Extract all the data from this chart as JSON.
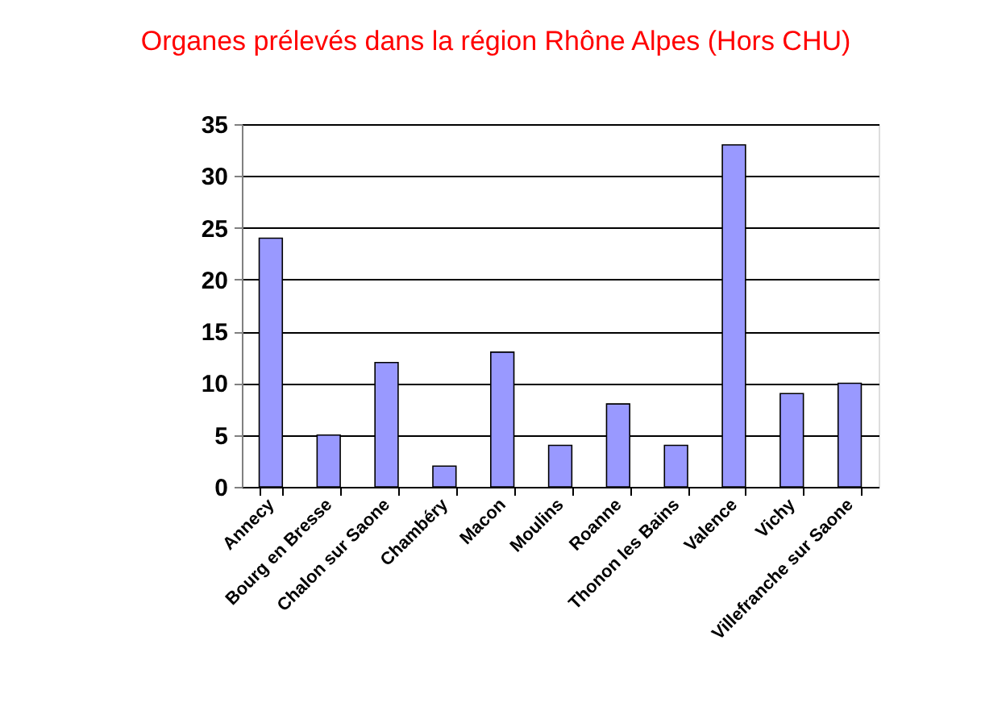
{
  "chart_data": {
    "type": "bar",
    "title": "Organes prélevés dans la région Rhône Alpes (Hors CHU)",
    "categories": [
      "Annecy",
      "Bourg en Bresse",
      "Chalon sur Saone",
      "Chambéry",
      "Macon",
      "Moulins",
      "Roanne",
      "Thonon les Bains",
      "Valence",
      "Vichy",
      "Villefranche sur Saone"
    ],
    "values": [
      24,
      5,
      12,
      2,
      13,
      4,
      8,
      4,
      33,
      9,
      10
    ],
    "color": "#9999ff",
    "ylim": [
      0,
      35
    ],
    "yticks": [
      0,
      5,
      10,
      15,
      20,
      25,
      30,
      35
    ],
    "grid": "y"
  }
}
